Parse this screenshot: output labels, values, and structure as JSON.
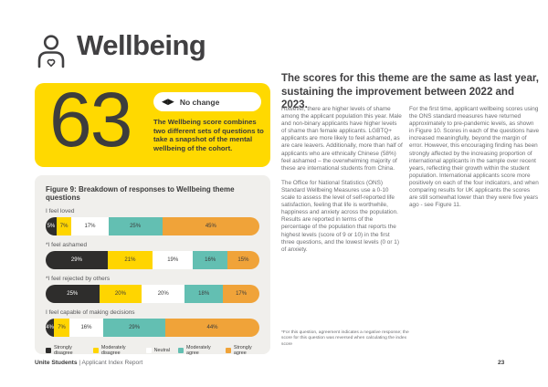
{
  "page": {
    "title": "Wellbeing",
    "page_number": "23",
    "footer_brand": "Unite Students",
    "footer_separator": "  |  ",
    "footer_report": "Applicant Index Report"
  },
  "score_card": {
    "score": "63",
    "change_arrows": "◀▶",
    "change_label": "No change",
    "description": "The Wellbeing score combines two different sets of questions to take a snapshot of the mental wellbeing of the cohort."
  },
  "headline": "The scores for this theme are the same as last year, sustaining the improvement between 2022 and 2023.",
  "body": {
    "col1_p1": "However, there are higher levels of shame among the applicant population this year. Male and non-binary applicants have higher levels of shame than female applicants. LGBTQ+ applicants are more likely to feel ashamed, as are care leavers. Additionally, more than half of applicants who are ethnically Chinese (58%) feel ashamed – the overwhelming majority of these are international students from China.",
    "col1_p2": "The Office for National Statistics (ONS) Standard Wellbeing Measures use a 0-10 scale to assess the level of self-reported life satisfaction, feeling that life is worthwhile, happiness and anxiety across the population. Results are reported in terms of the percentage of the population that reports the highest levels (score of 9 or 10) in the first three questions, and the lowest levels (0 or 1) of anxiety.",
    "col2_p1": "For the first time, applicant wellbeing scores using the ONS standard measures have returned approximately to pre-pandemic levels, as shown in Figure 10. Scores in each of the questions have increased meaningfully, beyond the margin of error. However, this encouraging finding has been strongly affected by the increasing proportion of international applicants in the sample over recent years, reflecting their growth within the student population. International applicants score more positively on each of the four indicators, and when comparing results for UK applicants the scores are still somewhat lower than they were five years ago - see Figure 11.",
    "footnote": "*For this question, agreement indicates a negative response; the score for this question was reversed when calculating the index score"
  },
  "chart_data": {
    "type": "bar",
    "orientation": "horizontal",
    "stacked": true,
    "title": "Figure 9: Breakdown of responses to Wellbeing theme questions",
    "categories": [
      "I feel loved",
      "*I feel ashamed",
      "*I feel rejected by others",
      "I feel capable of making decisions"
    ],
    "series": [
      {
        "name": "Strongly disagree",
        "color": "#2E2D2C",
        "label_color": "#ffffff",
        "values": [
          5,
          29,
          25,
          4
        ]
      },
      {
        "name": "Moderately disagree",
        "color": "#FFD500",
        "label_color": "#3b3b3b",
        "values": [
          7,
          21,
          20,
          7
        ]
      },
      {
        "name": "Neutral",
        "color": "#FFFFFF",
        "label_color": "#3b3b3b",
        "values": [
          17,
          19,
          20,
          16
        ]
      },
      {
        "name": "Moderately agree",
        "color": "#63BFB2",
        "label_color": "#3b3b3b",
        "values": [
          25,
          16,
          18,
          29
        ]
      },
      {
        "name": "Strongly agree",
        "color": "#F0A339",
        "label_color": "#3b3b3b",
        "values": [
          45,
          15,
          17,
          44
        ]
      }
    ],
    "value_suffix": "%",
    "legend_position": "bottom",
    "xlim": [
      0,
      100
    ]
  },
  "colors": {
    "card_yellow": "#FFD900",
    "panel_gray": "#F0EFEC",
    "heading_dark": "#414042",
    "body_gray": "#6d6e71"
  }
}
